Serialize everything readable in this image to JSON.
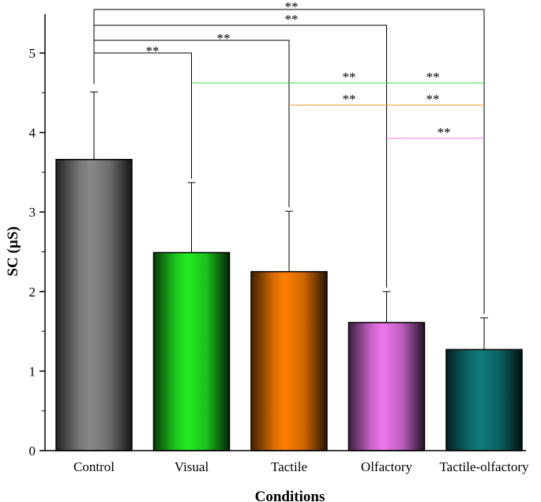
{
  "chart_data": {
    "type": "bar",
    "title": "",
    "xlabel": "Conditions",
    "ylabel": "SC (µS)",
    "ylim": [
      0,
      5.4
    ],
    "yticks": [
      "0",
      "1",
      "2",
      "3",
      "4",
      "5"
    ],
    "categories": [
      "Control",
      "Visual",
      "Tactile",
      "Olfactory",
      "Tactile-olfactory"
    ],
    "values": [
      3.66,
      2.49,
      2.25,
      1.61,
      1.27
    ],
    "errors": [
      0.85,
      0.88,
      0.76,
      0.39,
      0.4
    ],
    "colors": [
      "#8a8a8a",
      "#22ee22",
      "#ff8000",
      "#ee77ee",
      "#0f7a7a"
    ],
    "significance": [
      {
        "from": "Control",
        "to": "Visual",
        "label": "**",
        "color": "#000000"
      },
      {
        "from": "Control",
        "to": "Tactile",
        "label": "**",
        "color": "#000000"
      },
      {
        "from": "Control",
        "to": "Olfactory",
        "label": "**",
        "color": "#000000"
      },
      {
        "from": "Control",
        "to": "Tactile-olfactory",
        "label": "**",
        "color": "#000000"
      },
      {
        "from": "Visual",
        "to": "Olfactory",
        "label": "**",
        "color": "#33dd33"
      },
      {
        "from": "Visual",
        "to": "Tactile-olfactory",
        "label": "**",
        "color": "#33dd33"
      },
      {
        "from": "Tactile",
        "to": "Olfactory",
        "label": "**",
        "color": "#ff9933"
      },
      {
        "from": "Tactile",
        "to": "Tactile-olfactory",
        "label": "**",
        "color": "#ff9933"
      },
      {
        "from": "Olfactory",
        "to": "Tactile-olfactory",
        "label": "**",
        "color": "#ee77ee"
      }
    ]
  }
}
